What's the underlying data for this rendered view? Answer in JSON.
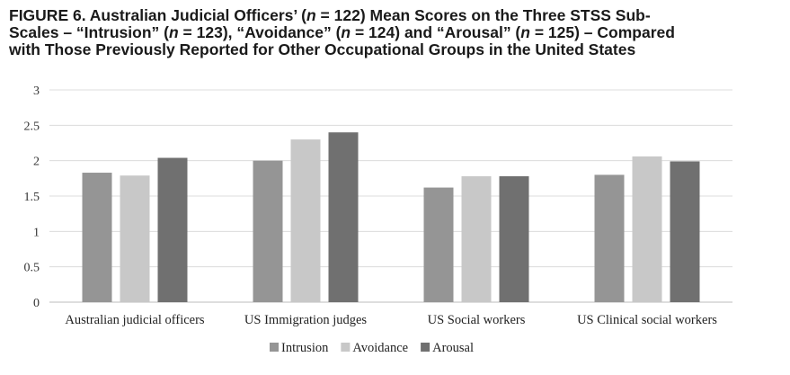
{
  "title": {
    "line1": [
      "FIGURE 6.  Australian Judicial Officers’ (",
      "n",
      " = 122) Mean Scores on the Three STSS Sub-"
    ],
    "line2": [
      "Scales – “Intrusion” (",
      "n",
      " = 123), “Avoidance” (",
      "n",
      " = 124) and “Arousal” (",
      "n",
      " = 125) – Compared"
    ],
    "line3": [
      "with Those Previously Reported for Other Occupational Groups in the United States"
    ]
  },
  "chart_data": {
    "type": "bar",
    "title": "FIGURE 6. Australian Judicial Officers’ (n = 122) Mean Scores on the Three STSS Sub-Scales – “Intrusion” (n = 123), “Avoidance” (n = 124) and “Arousal” (n = 125) – Compared with Those Previously Reported for Other Occupational Groups in the United States",
    "categories": [
      "Australian judicial officers",
      "US Immigration judges",
      "US Social workers",
      "US Clinical social workers"
    ],
    "series": [
      {
        "name": "Intrusion",
        "values": [
          1.83,
          2.0,
          1.62,
          1.8
        ],
        "color": "#959595"
      },
      {
        "name": "Avoidance",
        "values": [
          1.79,
          2.3,
          1.78,
          2.06
        ],
        "color": "#c8c8c8"
      },
      {
        "name": "Arousal",
        "values": [
          2.04,
          2.4,
          1.78,
          1.99
        ],
        "color": "#707070"
      }
    ],
    "yticks": [
      "0",
      "0.5",
      "1",
      "1.5",
      "2",
      "2.5",
      "3"
    ],
    "ylim": [
      0,
      3
    ],
    "grid": true,
    "legend": "bottom-center",
    "xlabel": "",
    "ylabel": ""
  }
}
